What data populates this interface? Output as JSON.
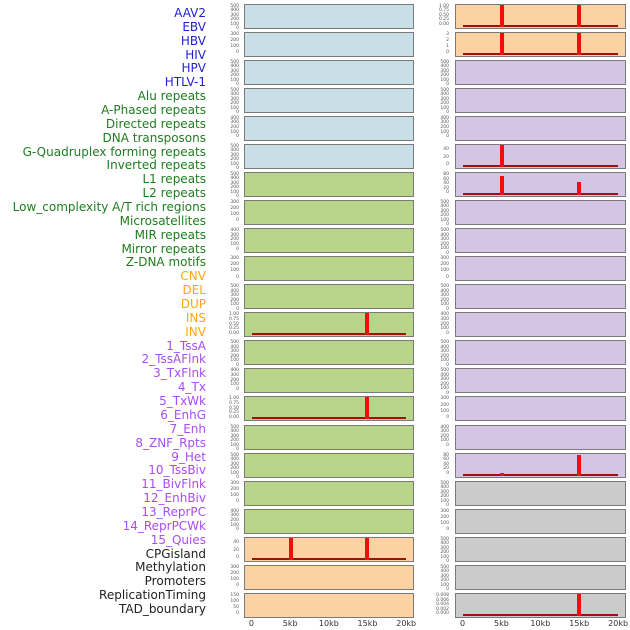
{
  "colors": {
    "label": {
      "virus": "#2222cc",
      "repeat": "#1e7d1e",
      "sv": "#ffa60f",
      "chromatin": "#a94df2",
      "other": "#222222"
    },
    "panel_bg": {
      "virus": "#c9dfe8",
      "repeat": "#b7d489",
      "sv": "#fcd2a2",
      "chromatin": "#d3c5e3",
      "other": "#cbcbcb"
    },
    "spike": "#f50d0d",
    "baseline": "#a01010",
    "panel_border": "#7a7a7a"
  },
  "chart_data": {
    "type": "line",
    "title": "",
    "xlabel": "",
    "x_ticks": [
      "0",
      "5kb",
      "10kb",
      "15kb",
      "20kb"
    ],
    "x_range_kb": [
      0,
      20
    ],
    "grid": false,
    "columns": [
      {
        "panels": [
          {
            "label": "AAV2",
            "group": "virus",
            "y_ticks": [
              "500",
              "400",
              "300",
              "200",
              "100",
              "0"
            ],
            "baseline": false,
            "spikes": []
          },
          {
            "label": "EBV",
            "group": "virus",
            "y_ticks": [
              "300",
              "200",
              "100",
              "0"
            ],
            "baseline": false,
            "spikes": []
          },
          {
            "label": "HBV",
            "group": "virus",
            "y_ticks": [
              "500",
              "400",
              "300",
              "200",
              "100",
              "0"
            ],
            "baseline": false,
            "spikes": []
          },
          {
            "label": "HIV",
            "group": "virus",
            "y_ticks": [
              "500",
              "400",
              "300",
              "200",
              "100",
              "0"
            ],
            "baseline": false,
            "spikes": []
          },
          {
            "label": "HPV",
            "group": "virus",
            "y_ticks": [
              "400",
              "300",
              "200",
              "100",
              "0"
            ],
            "baseline": false,
            "spikes": []
          },
          {
            "label": "HTLV-1",
            "group": "virus",
            "y_ticks": [
              "500",
              "400",
              "300",
              "200",
              "100",
              "0"
            ],
            "baseline": false,
            "spikes": []
          },
          {
            "label": "Alu repeats",
            "group": "repeat",
            "y_ticks": [
              "500",
              "400",
              "300",
              "200",
              "100",
              "0"
            ],
            "baseline": false,
            "spikes": []
          },
          {
            "label": "A-Phased repeats",
            "group": "repeat",
            "y_ticks": [
              "300",
              "200",
              "100",
              "0"
            ],
            "baseline": false,
            "spikes": []
          },
          {
            "label": "Directed repeats",
            "group": "repeat",
            "y_ticks": [
              "400",
              "300",
              "200",
              "100",
              "0"
            ],
            "baseline": false,
            "spikes": []
          },
          {
            "label": "DNA transposons",
            "group": "repeat",
            "y_ticks": [
              "300",
              "200",
              "100",
              "0"
            ],
            "baseline": false,
            "spikes": []
          },
          {
            "label": "G-Quadruplex forming repeats",
            "group": "repeat",
            "y_ticks": [
              "500",
              "400",
              "300",
              "200",
              "100",
              "0"
            ],
            "baseline": false,
            "spikes": []
          },
          {
            "label": "Inverted repeats",
            "group": "repeat",
            "y_ticks": [
              "1.00",
              "0.75",
              "0.50",
              "0.25",
              "0.00"
            ],
            "baseline": true,
            "spikes": [
              {
                "x": "15kb",
                "h": 1.0
              }
            ]
          },
          {
            "label": "L1 repeats",
            "group": "repeat",
            "y_ticks": [
              "500",
              "400",
              "300",
              "200",
              "100",
              "0"
            ],
            "baseline": false,
            "spikes": []
          },
          {
            "label": "L2 repeats",
            "group": "repeat",
            "y_ticks": [
              "400",
              "300",
              "200",
              "100",
              "0"
            ],
            "baseline": false,
            "spikes": []
          },
          {
            "label": "Low_complexity A/T rich regions",
            "group": "repeat",
            "y_ticks": [
              "1.00",
              "0.75",
              "0.50",
              "0.25",
              "0.00"
            ],
            "baseline": true,
            "spikes": [
              {
                "x": "15kb",
                "h": 1.0
              }
            ]
          },
          {
            "label": "Microsatellites",
            "group": "repeat",
            "y_ticks": [
              "500",
              "400",
              "300",
              "200",
              "100",
              "0"
            ],
            "baseline": false,
            "spikes": []
          },
          {
            "label": "MIR repeats",
            "group": "repeat",
            "y_ticks": [
              "500",
              "400",
              "300",
              "200",
              "100",
              "0"
            ],
            "baseline": false,
            "spikes": []
          },
          {
            "label": "Mirror repeats",
            "group": "repeat",
            "y_ticks": [
              "300",
              "200",
              "100",
              "0"
            ],
            "baseline": false,
            "spikes": []
          },
          {
            "label": "Z-DNA motifs",
            "group": "repeat",
            "y_ticks": [
              "400",
              "300",
              "200",
              "100",
              "0"
            ],
            "baseline": false,
            "spikes": []
          },
          {
            "label": "CNV",
            "group": "sv",
            "y_ticks": [
              "40",
              "20",
              "0"
            ],
            "baseline": true,
            "spikes": [
              {
                "x": "5kb",
                "h": 1.0
              },
              {
                "x": "15kb",
                "h": 1.0
              }
            ]
          },
          {
            "label": "DEL",
            "group": "sv",
            "y_ticks": [
              "300",
              "200",
              "100",
              "0"
            ],
            "baseline": false,
            "spikes": []
          },
          {
            "label": "DUP",
            "group": "sv",
            "y_ticks": [
              "150",
              "100",
              "50",
              "0"
            ],
            "baseline": false,
            "spikes": []
          }
        ]
      },
      {
        "panels": [
          {
            "label": "INS",
            "group": "sv",
            "y_ticks": [
              "1.00",
              "0.75",
              "0.50",
              "0.25",
              "0.00"
            ],
            "baseline": true,
            "spikes": [
              {
                "x": "5kb",
                "h": 1.0
              },
              {
                "x": "15kb",
                "h": 1.0
              }
            ]
          },
          {
            "label": "INV",
            "group": "sv",
            "y_ticks": [
              "3",
              "2",
              "1",
              "0"
            ],
            "baseline": true,
            "spikes": [
              {
                "x": "5kb",
                "h": 1.0
              },
              {
                "x": "15kb",
                "h": 1.0
              }
            ]
          },
          {
            "label": "1_TssA",
            "group": "chromatin",
            "y_ticks": [
              "500",
              "400",
              "300",
              "200",
              "100",
              "0"
            ],
            "baseline": false,
            "spikes": []
          },
          {
            "label": "2_TssAFlnk",
            "group": "chromatin",
            "y_ticks": [
              "500",
              "400",
              "300",
              "200",
              "100",
              "0"
            ],
            "baseline": false,
            "spikes": []
          },
          {
            "label": "3_TxFlnk",
            "group": "chromatin",
            "y_ticks": [
              "400",
              "300",
              "200",
              "100",
              "0"
            ],
            "baseline": false,
            "spikes": []
          },
          {
            "label": "4_Tx",
            "group": "chromatin",
            "y_ticks": [
              "40",
              "20",
              "0"
            ],
            "baseline": true,
            "spikes": [
              {
                "x": "5kb",
                "h": 1.0
              }
            ]
          },
          {
            "label": "5_TxWk",
            "group": "chromatin",
            "y_ticks": [
              "80",
              "60",
              "40",
              "20",
              "0"
            ],
            "baseline": true,
            "spikes": [
              {
                "x": "5kb",
                "h": 0.85
              },
              {
                "x": "15kb",
                "h": 0.55
              }
            ]
          },
          {
            "label": "6_EnhG",
            "group": "chromatin",
            "y_ticks": [
              "500",
              "400",
              "300",
              "200",
              "100",
              "0"
            ],
            "baseline": false,
            "spikes": []
          },
          {
            "label": "7_Enh",
            "group": "chromatin",
            "y_ticks": [
              "500",
              "400",
              "300",
              "200",
              "100",
              "0"
            ],
            "baseline": false,
            "spikes": []
          },
          {
            "label": "8_ZNF_Rpts",
            "group": "chromatin",
            "y_ticks": [
              "300",
              "200",
              "100",
              "0"
            ],
            "baseline": false,
            "spikes": []
          },
          {
            "label": "9_Het",
            "group": "chromatin",
            "y_ticks": [
              "500",
              "400",
              "300",
              "200",
              "100",
              "0"
            ],
            "baseline": false,
            "spikes": []
          },
          {
            "label": "10_TssBiv",
            "group": "chromatin",
            "y_ticks": [
              "400",
              "300",
              "200",
              "100",
              "0"
            ],
            "baseline": false,
            "spikes": []
          },
          {
            "label": "11_BivFlnk",
            "group": "chromatin",
            "y_ticks": [
              "500",
              "400",
              "300",
              "200",
              "100",
              "0"
            ],
            "baseline": false,
            "spikes": []
          },
          {
            "label": "12_EnhBiv",
            "group": "chromatin",
            "y_ticks": [
              "500",
              "400",
              "300",
              "200",
              "100",
              "0"
            ],
            "baseline": false,
            "spikes": []
          },
          {
            "label": "13_ReprPC",
            "group": "chromatin",
            "y_ticks": [
              "300",
              "200",
              "100",
              "0"
            ],
            "baseline": false,
            "spikes": []
          },
          {
            "label": "14_ReprPCWk",
            "group": "chromatin",
            "y_ticks": [
              "400",
              "300",
              "200",
              "100",
              "0"
            ],
            "baseline": false,
            "spikes": []
          },
          {
            "label": "15_Quies",
            "group": "chromatin",
            "y_ticks": [
              "80",
              "60",
              "40",
              "20",
              "0"
            ],
            "baseline": true,
            "spikes": [
              {
                "x": "5kb",
                "h": 0.1
              },
              {
                "x": "15kb",
                "h": 0.95
              }
            ]
          },
          {
            "label": "CPGisland",
            "group": "other",
            "y_ticks": [
              "500",
              "400",
              "300",
              "200",
              "100",
              "0"
            ],
            "baseline": false,
            "spikes": []
          },
          {
            "label": "Methylation",
            "group": "other",
            "y_ticks": [
              "300",
              "200",
              "100",
              "0"
            ],
            "baseline": false,
            "spikes": []
          },
          {
            "label": "Promoters",
            "group": "other",
            "y_ticks": [
              "500",
              "400",
              "300",
              "200",
              "100",
              "0"
            ],
            "baseline": false,
            "spikes": []
          },
          {
            "label": "ReplicationTiming",
            "group": "other",
            "y_ticks": [
              "500",
              "400",
              "300",
              "200",
              "100",
              "0"
            ],
            "baseline": false,
            "spikes": []
          },
          {
            "label": "TAD_boundary",
            "group": "other",
            "y_ticks": [
              "0.008",
              "0.006",
              "0.004",
              "0.002",
              "0.000"
            ],
            "baseline": true,
            "spikes": [
              {
                "x": "15kb",
                "h": 1.0
              }
            ]
          }
        ]
      }
    ]
  }
}
